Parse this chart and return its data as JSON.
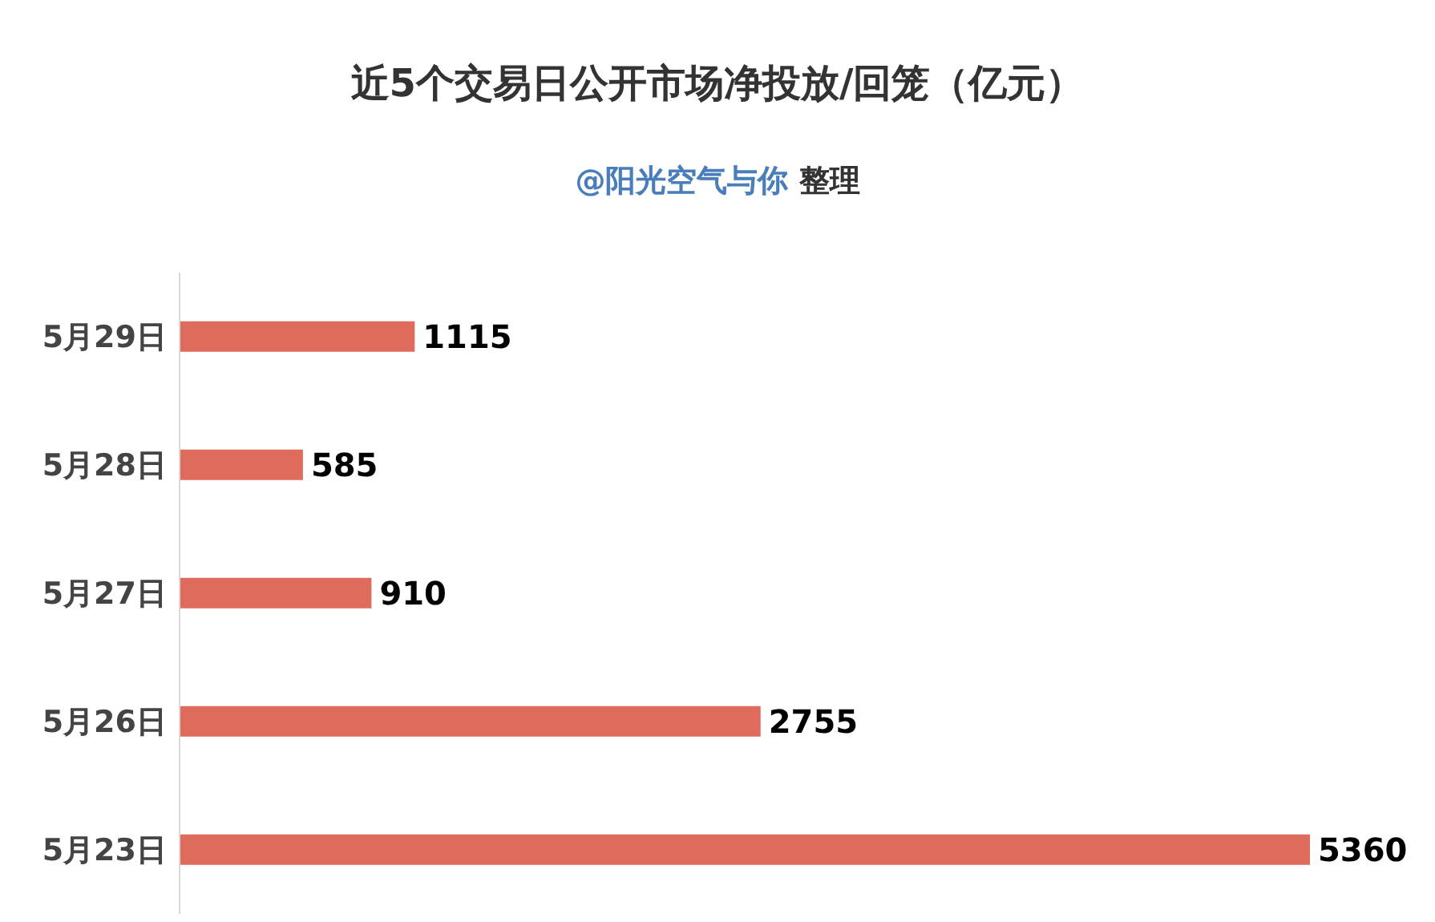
{
  "chart_data": {
    "type": "bar",
    "orientation": "horizontal",
    "title": "近5个交易日公开市场净投放/回笼（亿元）",
    "subtitle": "@阳光空气与你 整理",
    "categories": [
      "5月29日",
      "5月28日",
      "5月27日",
      "5月26日",
      "5月23日"
    ],
    "values": [
      1115,
      585,
      910,
      2755,
      5360
    ],
    "color": "#df6b5d",
    "data_labels": true
  }
}
